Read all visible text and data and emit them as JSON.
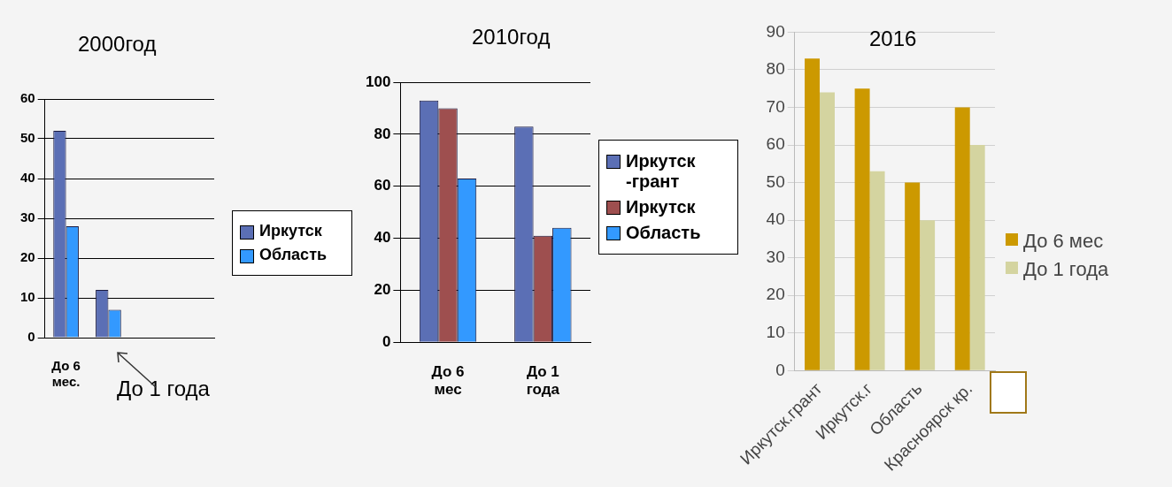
{
  "chart_data": [
    {
      "type": "bar",
      "title": "2000год",
      "categories": [
        "До 6 мес.",
        null,
        null,
        null
      ],
      "series": [
        {
          "name": "Иркутск",
          "color": "#5b6fb5",
          "values": [
            52,
            12,
            null,
            null
          ]
        },
        {
          "name": "Область",
          "color": "#3399ff",
          "values": [
            28,
            7,
            null,
            null
          ]
        }
      ],
      "ylim": [
        0,
        60
      ],
      "yticks": [
        0,
        10,
        20,
        30,
        40,
        50,
        60
      ],
      "grid": "y",
      "legend": "right",
      "annotations": [
        "До 1 года"
      ]
    },
    {
      "type": "bar",
      "title": "2010год",
      "categories": [
        "До 6 мес",
        "До 1 года"
      ],
      "series": [
        {
          "name": "Иркутск -грант",
          "color": "#5b6fb5",
          "values": [
            93,
            83
          ]
        },
        {
          "name": "Иркутск",
          "color": "#9e4f4f",
          "values": [
            90,
            41
          ]
        },
        {
          "name": "Область",
          "color": "#3399ff",
          "values": [
            63,
            44
          ]
        }
      ],
      "ylim": [
        0,
        100
      ],
      "yticks": [
        0,
        20,
        40,
        60,
        80,
        100
      ],
      "grid": "y",
      "legend": "right"
    },
    {
      "type": "bar",
      "title": "2016",
      "categories": [
        "Иркутск.грант",
        "Иркутск.г",
        "Область",
        "Красноярск кр."
      ],
      "series": [
        {
          "name": "До 6 мес",
          "color": "#cc9900",
          "values": [
            83,
            75,
            50,
            70
          ]
        },
        {
          "name": "До 1 года",
          "color": "#d4d4a0",
          "values": [
            74,
            53,
            40,
            60
          ]
        }
      ],
      "ylim": [
        0,
        90
      ],
      "yticks": [
        0,
        10,
        20,
        30,
        40,
        50,
        60,
        70,
        80,
        90
      ],
      "grid": "y",
      "legend": "right"
    }
  ]
}
